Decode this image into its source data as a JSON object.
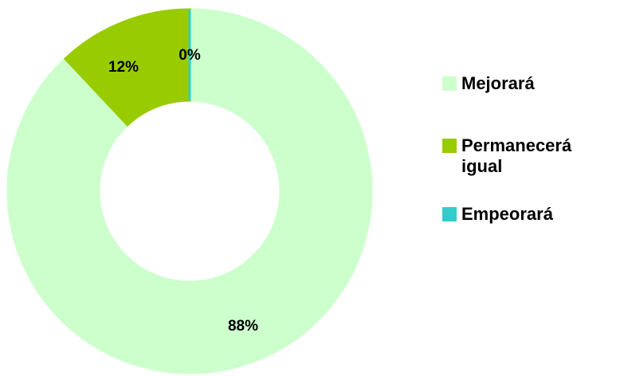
{
  "chart_data": {
    "type": "donut",
    "categories": [
      "Mejorará",
      "Permanecerá igual",
      "Empeorará"
    ],
    "values": [
      88,
      12,
      0
    ],
    "value_labels": [
      "88%",
      "12%",
      "0%"
    ],
    "colors": [
      "#ccffcc",
      "#99cc00",
      "#33cccc"
    ]
  }
}
